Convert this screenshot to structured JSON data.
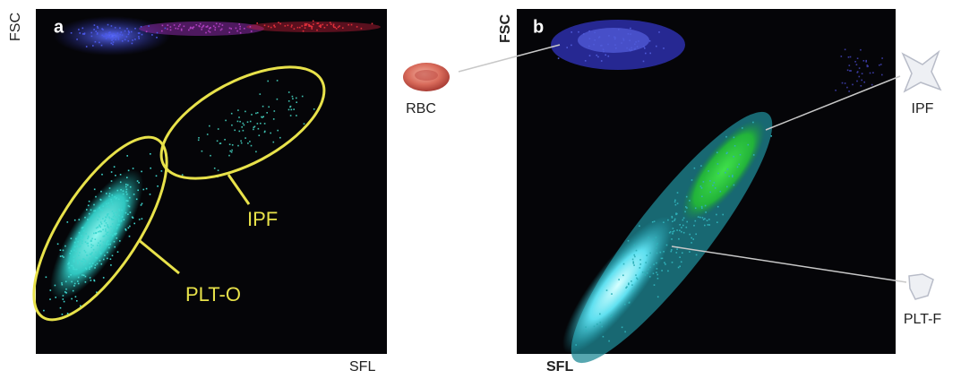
{
  "panels": [
    {
      "label": "a",
      "y_axis": "FSC",
      "x_axis": "SFL",
      "annotations": [
        "IPF",
        "PLT-O"
      ]
    },
    {
      "label": "b",
      "y_axis": "FSC",
      "x_axis": "SFL",
      "annotations": [
        "RBC",
        "IPF",
        "PLT-F"
      ]
    }
  ]
}
